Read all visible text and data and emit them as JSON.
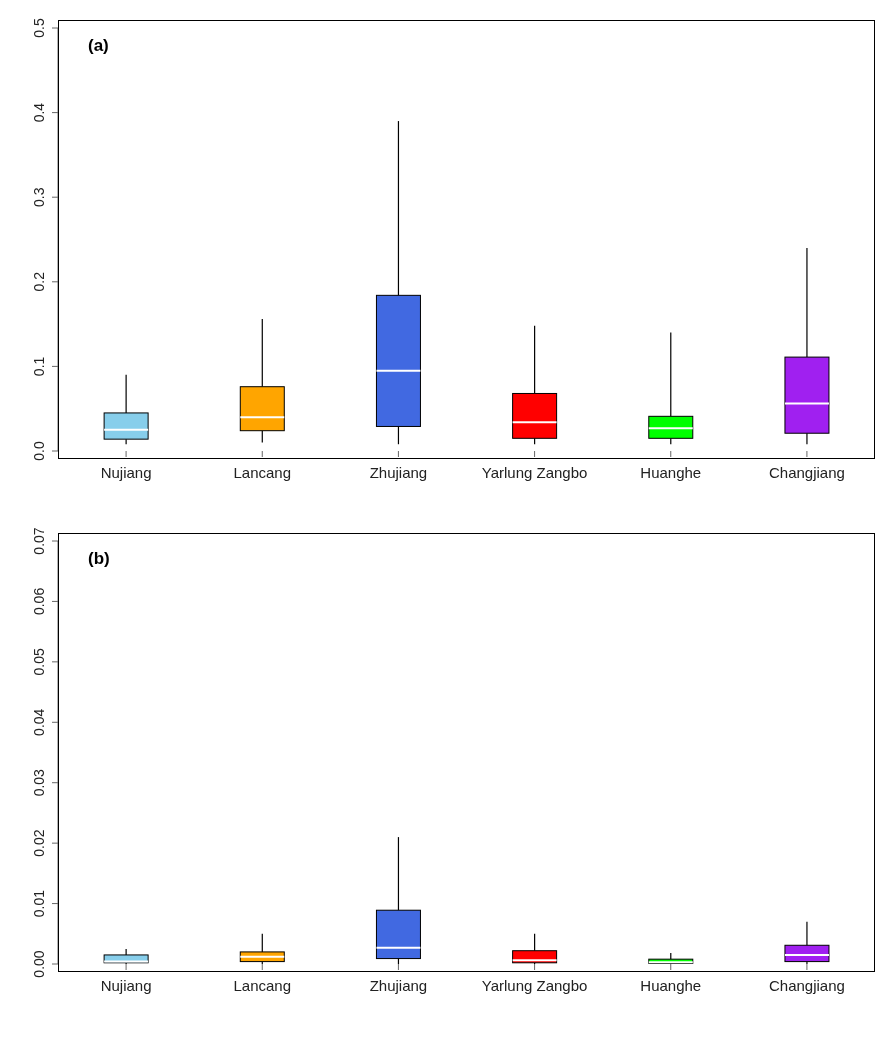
{
  "chart_data": [
    {
      "type": "box",
      "title": "(a)",
      "categories": [
        "Nujiang",
        "Lancang",
        "Zhujiang",
        "Yarlung Zangbo",
        "Huanghe",
        "Changjiang"
      ],
      "colors": [
        "#87ceeb",
        "#ffa500",
        "#4169e1",
        "#ff0000",
        "#00ff00",
        "#a020f0"
      ],
      "boxes": [
        {
          "low": 0.008,
          "q1": 0.014,
          "median": 0.025,
          "q3": 0.045,
          "high": 0.09
        },
        {
          "low": 0.01,
          "q1": 0.024,
          "median": 0.04,
          "q3": 0.076,
          "high": 0.156
        },
        {
          "low": 0.008,
          "q1": 0.029,
          "median": 0.095,
          "q3": 0.184,
          "high": 0.39
        },
        {
          "low": 0.008,
          "q1": 0.015,
          "median": 0.034,
          "q3": 0.068,
          "high": 0.148
        },
        {
          "low": 0.008,
          "q1": 0.015,
          "median": 0.027,
          "q3": 0.041,
          "high": 0.14
        },
        {
          "low": 0.008,
          "q1": 0.021,
          "median": 0.056,
          "q3": 0.111,
          "high": 0.24
        }
      ],
      "ylim": [
        0,
        0.5
      ],
      "yticks": [
        {
          "value": 0,
          "label": "0.0"
        },
        0.1,
        0.2,
        0.3,
        0.4,
        0.5
      ]
    },
    {
      "type": "box",
      "title": "(b)",
      "categories": [
        "Nujiang",
        "Lancang",
        "Zhujiang",
        "Yarlung Zangbo",
        "Huanghe",
        "Changjiang"
      ],
      "colors": [
        "#87ceeb",
        "#ffa500",
        "#4169e1",
        "#ff0000",
        "#00ff00",
        "#a020f0"
      ],
      "boxes": [
        {
          "low": 0,
          "q1": 0.0002,
          "median": 0.0004,
          "q3": 0.0015,
          "high": 0.0025
        },
        {
          "low": 0,
          "q1": 0.0004,
          "median": 0.0012,
          "q3": 0.002,
          "high": 0.005
        },
        {
          "low": 0,
          "q1": 0.0009,
          "median": 0.0027,
          "q3": 0.0089,
          "high": 0.021
        },
        {
          "low": 0,
          "q1": 0.0002,
          "median": 0.0006,
          "q3": 0.0022,
          "high": 0.005
        },
        {
          "low": 0,
          "q1": 0.0001,
          "median": 0.0003,
          "q3": 0.0008,
          "high": 0.0018
        },
        {
          "low": 0,
          "q1": 0.0004,
          "median": 0.0015,
          "q3": 0.0031,
          "high": 0.007
        }
      ],
      "ylim": [
        0,
        0.07
      ],
      "yticks": [
        {
          "value": 0,
          "label": "0.00"
        },
        0.01,
        0.02,
        0.03,
        0.04,
        0.05,
        0.06,
        0.07
      ]
    }
  ]
}
